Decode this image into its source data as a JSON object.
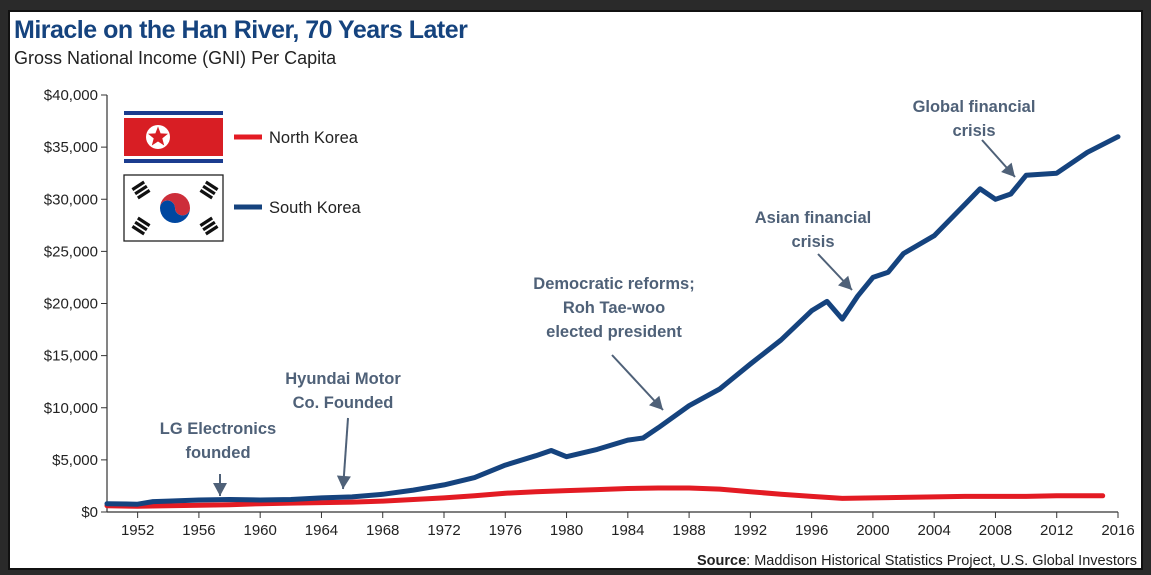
{
  "colors": {
    "title": "#15437e",
    "south_korea": "#15437e",
    "north_korea": "#e31b23",
    "annotation": "#4f6178"
  },
  "source": {
    "label": "Source",
    "text": ": Maddison Historical Statistics Project, U.S. Global Investors"
  },
  "chart_data": {
    "type": "line",
    "title": "Miracle on the Han River, 70 Years Later",
    "subtitle": "Gross National Income (GNI) Per Capita",
    "xlabel": "",
    "ylabel": "",
    "xlim": [
      1950,
      2016
    ],
    "ylim": [
      0,
      40000
    ],
    "grid": false,
    "legend_position": "top-left",
    "x_ticks": [
      "1952",
      "1956",
      "1960",
      "1964",
      "1968",
      "1972",
      "1976",
      "1980",
      "1984",
      "1988",
      "1992",
      "1996",
      "2000",
      "2004",
      "2008",
      "2012",
      "2016"
    ],
    "y_ticks": [
      "$0",
      "$5,000",
      "$10,000",
      "$15,000",
      "$20,000",
      "$25,000",
      "$30,000",
      "$35,000",
      "$40,000"
    ],
    "series": [
      {
        "name": "North Korea",
        "icon": "north-korea-flag",
        "points": [
          [
            1950,
            600
          ],
          [
            1952,
            550
          ],
          [
            1954,
            600
          ],
          [
            1956,
            650
          ],
          [
            1958,
            700
          ],
          [
            1960,
            800
          ],
          [
            1962,
            850
          ],
          [
            1964,
            900
          ],
          [
            1966,
            950
          ],
          [
            1968,
            1050
          ],
          [
            1970,
            1200
          ],
          [
            1972,
            1350
          ],
          [
            1974,
            1550
          ],
          [
            1976,
            1800
          ],
          [
            1978,
            1950
          ],
          [
            1980,
            2050
          ],
          [
            1982,
            2150
          ],
          [
            1984,
            2250
          ],
          [
            1986,
            2300
          ],
          [
            1988,
            2300
          ],
          [
            1990,
            2200
          ],
          [
            1992,
            1950
          ],
          [
            1994,
            1700
          ],
          [
            1996,
            1500
          ],
          [
            1998,
            1300
          ],
          [
            2000,
            1350
          ],
          [
            2002,
            1400
          ],
          [
            2004,
            1450
          ],
          [
            2006,
            1500
          ],
          [
            2008,
            1500
          ],
          [
            2010,
            1500
          ],
          [
            2012,
            1550
          ],
          [
            2014,
            1550
          ],
          [
            2015,
            1550
          ]
        ]
      },
      {
        "name": "South Korea",
        "icon": "south-korea-flag",
        "points": [
          [
            1950,
            800
          ],
          [
            1952,
            750
          ],
          [
            1953,
            1000
          ],
          [
            1954,
            1050
          ],
          [
            1956,
            1150
          ],
          [
            1958,
            1200
          ],
          [
            1960,
            1150
          ],
          [
            1962,
            1200
          ],
          [
            1964,
            1350
          ],
          [
            1966,
            1450
          ],
          [
            1968,
            1700
          ],
          [
            1970,
            2100
          ],
          [
            1972,
            2600
          ],
          [
            1974,
            3300
          ],
          [
            1976,
            4500
          ],
          [
            1978,
            5400
          ],
          [
            1979,
            5900
          ],
          [
            1980,
            5300
          ],
          [
            1982,
            6000
          ],
          [
            1984,
            6900
          ],
          [
            1985,
            7100
          ],
          [
            1986,
            8100
          ],
          [
            1988,
            10200
          ],
          [
            1990,
            11800
          ],
          [
            1992,
            14200
          ],
          [
            1994,
            16500
          ],
          [
            1996,
            19300
          ],
          [
            1997,
            20200
          ],
          [
            1998,
            18500
          ],
          [
            1999,
            20700
          ],
          [
            2000,
            22500
          ],
          [
            2001,
            23000
          ],
          [
            2002,
            24800
          ],
          [
            2004,
            26500
          ],
          [
            2006,
            29500
          ],
          [
            2007,
            31000
          ],
          [
            2008,
            30000
          ],
          [
            2009,
            30500
          ],
          [
            2010,
            32300
          ],
          [
            2012,
            32500
          ],
          [
            2014,
            34500
          ],
          [
            2016,
            36000
          ]
        ]
      }
    ],
    "annotations": [
      {
        "id": "lg",
        "lines": [
          "LG Electronics",
          "founded"
        ],
        "year": 1958
      },
      {
        "id": "hyundai",
        "lines": [
          "Hyundai Motor",
          "Co. Founded"
        ],
        "year": 1966
      },
      {
        "id": "democratic",
        "lines": [
          "Democratic reforms;",
          "Roh Tae-woo",
          "elected president"
        ],
        "year": 1987
      },
      {
        "id": "asian",
        "lines": [
          "Asian financial",
          "crisis"
        ],
        "year": 1998
      },
      {
        "id": "global",
        "lines": [
          "Global financial",
          "crisis"
        ],
        "year": 2009
      }
    ]
  }
}
